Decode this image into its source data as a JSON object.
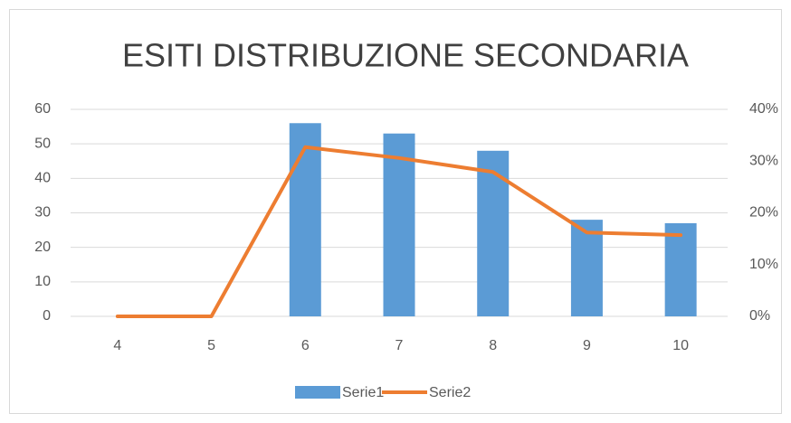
{
  "chart_data": {
    "type": "bar-line",
    "title": "ESITI DISTRIBUZIONE SECONDARIA",
    "categories": [
      "4",
      "5",
      "6",
      "7",
      "8",
      "9",
      "10"
    ],
    "series": [
      {
        "name": "Serie1",
        "type": "bar",
        "color": "#5b9bd5",
        "values": [
          0,
          0,
          56,
          53,
          48,
          28,
          27
        ]
      },
      {
        "name": "Serie2",
        "type": "line",
        "axis": "y2",
        "color": "#ed7d31",
        "values": [
          0,
          0,
          32.7,
          30.6,
          27.9,
          16.2,
          15.7
        ]
      }
    ],
    "ylim": [
      0,
      60
    ],
    "yticks": [
      0,
      10,
      20,
      30,
      40,
      50,
      60
    ],
    "y2lim": [
      0,
      40
    ],
    "y2ticks": [
      {
        "value": 0,
        "label": "0%"
      },
      {
        "value": 10,
        "label": "10%"
      },
      {
        "value": 20,
        "label": "20%"
      },
      {
        "value": 30,
        "label": "30%"
      },
      {
        "value": 40,
        "label": "40%"
      }
    ],
    "grid": true,
    "legend": "bottom"
  }
}
